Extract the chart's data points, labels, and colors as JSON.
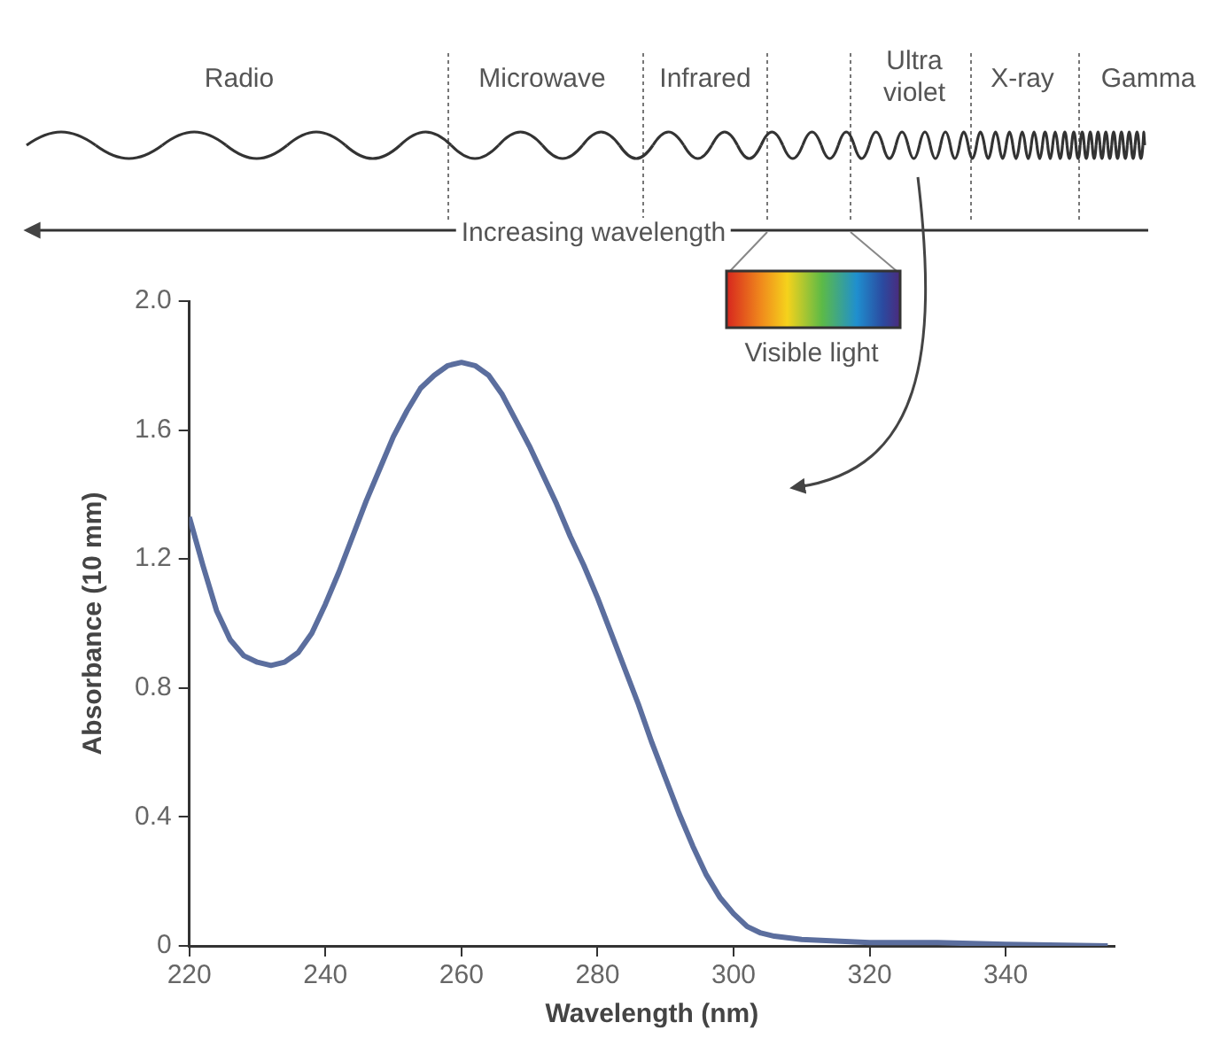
{
  "chart_data": {
    "type": "line",
    "xlabel": "Wavelength (nm)",
    "ylabel": "Absorbance (10 mm)",
    "x": [
      220,
      222,
      224,
      226,
      228,
      230,
      232,
      234,
      236,
      238,
      240,
      242,
      244,
      246,
      248,
      250,
      252,
      254,
      256,
      258,
      260,
      262,
      264,
      266,
      268,
      270,
      272,
      274,
      276,
      278,
      280,
      282,
      284,
      286,
      288,
      290,
      292,
      294,
      296,
      298,
      300,
      302,
      304,
      306,
      310,
      320,
      330,
      340,
      355
    ],
    "series": [
      {
        "color": "#5b6e9e",
        "values": [
          1.33,
          1.18,
          1.04,
          0.95,
          0.9,
          0.88,
          0.87,
          0.88,
          0.91,
          0.97,
          1.06,
          1.16,
          1.27,
          1.38,
          1.48,
          1.58,
          1.66,
          1.73,
          1.77,
          1.8,
          1.81,
          1.8,
          1.77,
          1.71,
          1.63,
          1.55,
          1.46,
          1.37,
          1.27,
          1.18,
          1.08,
          0.97,
          0.86,
          0.75,
          0.63,
          0.52,
          0.41,
          0.31,
          0.22,
          0.15,
          0.1,
          0.06,
          0.04,
          0.03,
          0.02,
          0.01,
          0.01,
          0.005,
          0
        ]
      }
    ],
    "xlim": [
      220,
      356
    ],
    "xticks": [
      220,
      240,
      260,
      280,
      300,
      320,
      340
    ],
    "ylim": [
      0,
      2
    ],
    "yticks": [
      0,
      0.4,
      0.8,
      1.2,
      1.6,
      {
        "value": 2,
        "label": "2.0"
      }
    ],
    "grid": false,
    "legend": false,
    "marker": "none",
    "line_style": "solid",
    "annotations": [
      "Radio",
      "Microwave",
      "Infrared",
      "Ultra violet",
      "X-ray",
      "Gamma",
      "Increasing wavelength",
      "Visible light"
    ]
  }
}
